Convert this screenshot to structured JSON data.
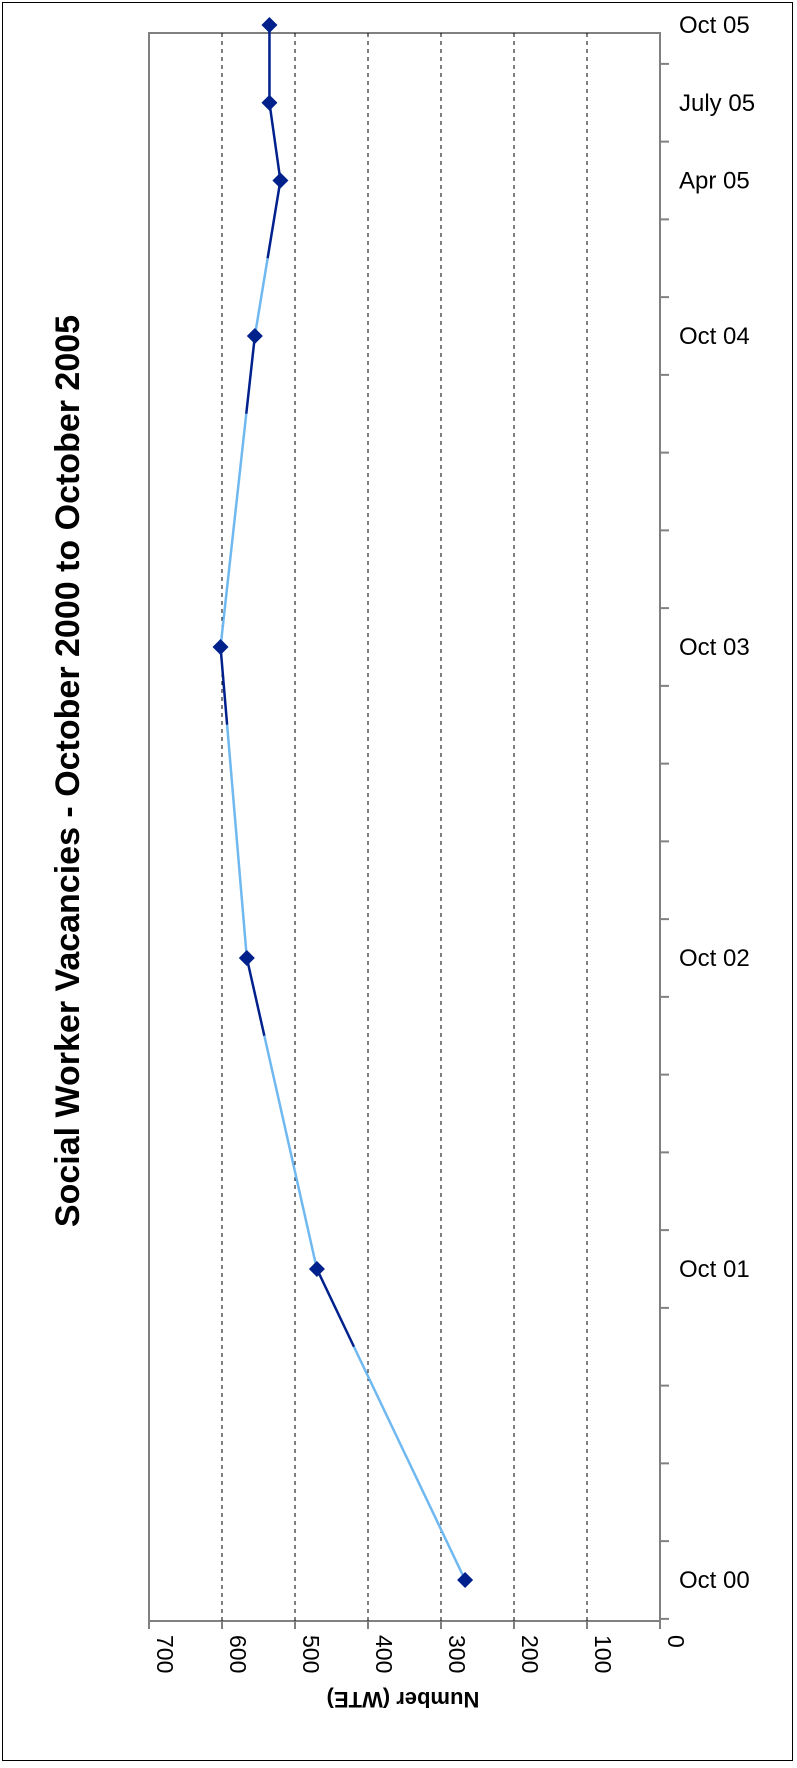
{
  "chart_data": {
    "type": "line",
    "title": "Social Worker Vacancies - October 2000 to October 2005",
    "ylabel": "Number (WTE)",
    "xlabel": "",
    "ylim": [
      0,
      700
    ],
    "y_ticks": [
      "0",
      "100",
      "200",
      "300",
      "400",
      "500",
      "600",
      "700"
    ],
    "x_periods_quarterly": 21,
    "x_tick_labels": [
      {
        "label": "Oct 00",
        "quarter": 0
      },
      {
        "label": "Oct 01",
        "quarter": 4
      },
      {
        "label": "Oct 02",
        "quarter": 8
      },
      {
        "label": "Oct 03",
        "quarter": 12
      },
      {
        "label": "Oct 04",
        "quarter": 16
      },
      {
        "label": "Apr 05",
        "quarter": 18
      },
      {
        "label": "July 05",
        "quarter": 19
      },
      {
        "label": "Oct 05",
        "quarter": 20
      }
    ],
    "grid": "dashed at each 100",
    "orientation": "rotated 90 degrees counter-clockwise",
    "series": [
      {
        "x": [
          "Oct 00",
          "Oct 01",
          "Oct 02",
          "Oct 03",
          "Oct 04",
          "Apr 05",
          "July 05",
          "Oct 05"
        ],
        "x_quarter": [
          0,
          4,
          8,
          12,
          16,
          18,
          19,
          20
        ],
        "values": [
          267,
          470,
          566,
          602,
          555,
          520,
          535,
          535
        ],
        "marker": "diamond",
        "marker_color": "#00208C",
        "line_color_recent": "#00208C",
        "line_color_interpolated": "#6FB8F0"
      }
    ]
  }
}
